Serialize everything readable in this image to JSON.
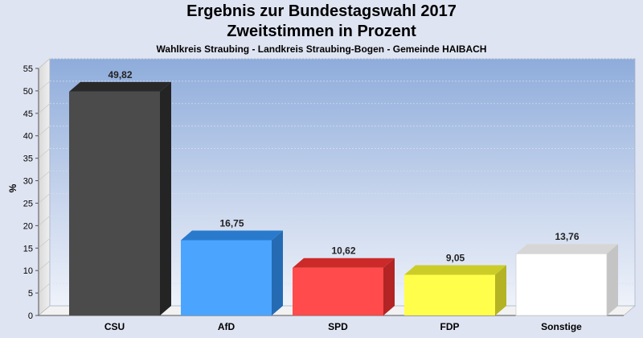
{
  "chart_data": {
    "type": "bar",
    "title": "Ergebnis zur Bundestagswahl 2017",
    "title_line2": "Zweitstimmen in Prozent",
    "subtitle": "Wahlkreis Straubing - Landkreis Straubing-Bogen - Gemeinde HAIBACH",
    "ylabel": "%",
    "xlabel": "",
    "ylim": [
      0,
      55
    ],
    "yticks": [
      0,
      5,
      10,
      15,
      20,
      25,
      30,
      35,
      40,
      45,
      50,
      55
    ],
    "grid": true,
    "legend": "none",
    "categories": [
      "CSU",
      "AfD",
      "SPD",
      "FDP",
      "Sonstige"
    ],
    "values": [
      49.82,
      16.75,
      10.62,
      9.05,
      13.76
    ],
    "value_labels": [
      "49,82",
      "16,75",
      "10,62",
      "9,05",
      "13,76"
    ],
    "colors": [
      "#333333",
      "#3399ff",
      "#ff3333",
      "#ffff33",
      "#ffffff"
    ]
  }
}
